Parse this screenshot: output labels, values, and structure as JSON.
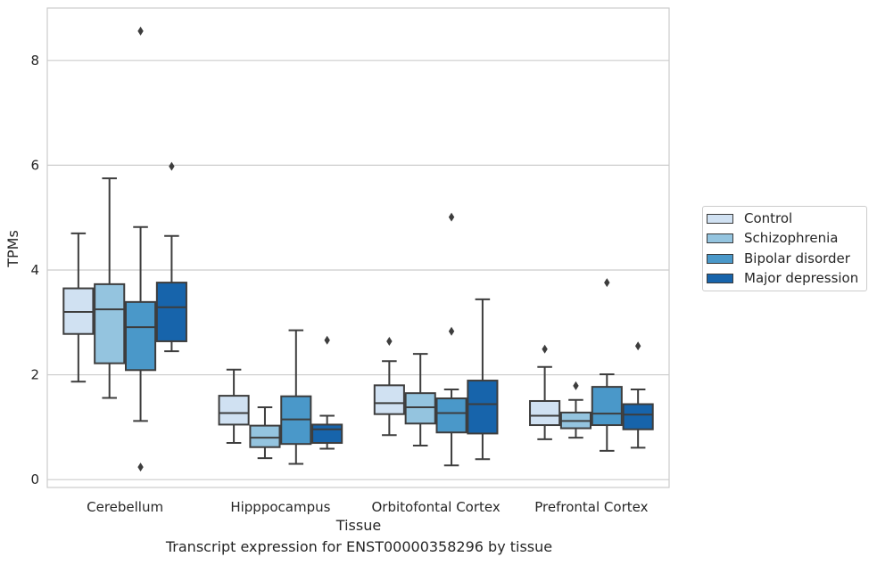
{
  "chart_data": {
    "type": "boxplot",
    "ylabel": "TPMs",
    "xlabel": "Tissue",
    "ylim": [
      -0.15,
      9.0
    ],
    "yticks": [
      0,
      2,
      4,
      6,
      8
    ],
    "grid": "horizontal",
    "legend_position": "right",
    "categories": [
      "Cerebellum",
      "Hipppocampus",
      "Orbitofontal Cortex",
      "Prefrontal Cortex"
    ],
    "series": [
      {
        "name": "Control",
        "color": "#d0e1f2",
        "boxes": [
          {
            "whislo": 1.87,
            "q1": 2.78,
            "med": 3.2,
            "q3": 3.65,
            "whishi": 4.7,
            "fliers": []
          },
          {
            "whislo": 0.7,
            "q1": 1.05,
            "med": 1.27,
            "q3": 1.6,
            "whishi": 2.1,
            "fliers": []
          },
          {
            "whislo": 0.85,
            "q1": 1.25,
            "med": 1.46,
            "q3": 1.8,
            "whishi": 2.26,
            "fliers": [
              2.64
            ]
          },
          {
            "whislo": 0.77,
            "q1": 1.04,
            "med": 1.22,
            "q3": 1.5,
            "whishi": 2.15,
            "fliers": [
              2.49
            ]
          }
        ]
      },
      {
        "name": "Schizophrenia",
        "color": "#94c4df",
        "boxes": [
          {
            "whislo": 1.56,
            "q1": 2.22,
            "med": 3.25,
            "q3": 3.73,
            "whishi": 5.75,
            "fliers": []
          },
          {
            "whislo": 0.41,
            "q1": 0.62,
            "med": 0.8,
            "q3": 1.03,
            "whishi": 1.38,
            "fliers": []
          },
          {
            "whislo": 0.65,
            "q1": 1.07,
            "med": 1.38,
            "q3": 1.65,
            "whishi": 2.4,
            "fliers": []
          },
          {
            "whislo": 0.8,
            "q1": 0.98,
            "med": 1.12,
            "q3": 1.28,
            "whishi": 1.52,
            "fliers": [
              1.79
            ]
          }
        ]
      },
      {
        "name": "Bipolar disorder",
        "color": "#4a98c9",
        "boxes": [
          {
            "whislo": 1.12,
            "q1": 2.09,
            "med": 2.91,
            "q3": 3.39,
            "whishi": 4.82,
            "fliers": [
              8.56,
              0.24
            ]
          },
          {
            "whislo": 0.3,
            "q1": 0.68,
            "med": 1.15,
            "q3": 1.59,
            "whishi": 2.85,
            "fliers": []
          },
          {
            "whislo": 0.27,
            "q1": 0.9,
            "med": 1.27,
            "q3": 1.55,
            "whishi": 1.72,
            "fliers": [
              5.01,
              2.83
            ]
          },
          {
            "whislo": 0.55,
            "q1": 1.04,
            "med": 1.26,
            "q3": 1.77,
            "whishi": 2.01,
            "fliers": [
              3.76
            ]
          }
        ]
      },
      {
        "name": "Major depression",
        "color": "#1764ab",
        "boxes": [
          {
            "whislo": 2.45,
            "q1": 2.64,
            "med": 3.29,
            "q3": 3.76,
            "whishi": 4.65,
            "fliers": [
              5.98
            ]
          },
          {
            "whislo": 0.59,
            "q1": 0.7,
            "med": 0.96,
            "q3": 1.05,
            "whishi": 1.22,
            "fliers": [
              2.66
            ]
          },
          {
            "whislo": 0.39,
            "q1": 0.88,
            "med": 1.44,
            "q3": 1.89,
            "whishi": 3.44,
            "fliers": []
          },
          {
            "whislo": 0.61,
            "q1": 0.96,
            "med": 1.24,
            "q3": 1.44,
            "whishi": 1.72,
            "fliers": [
              2.55
            ]
          }
        ]
      }
    ]
  },
  "caption": "Transcript expression for ENST00000358296 by tissue"
}
